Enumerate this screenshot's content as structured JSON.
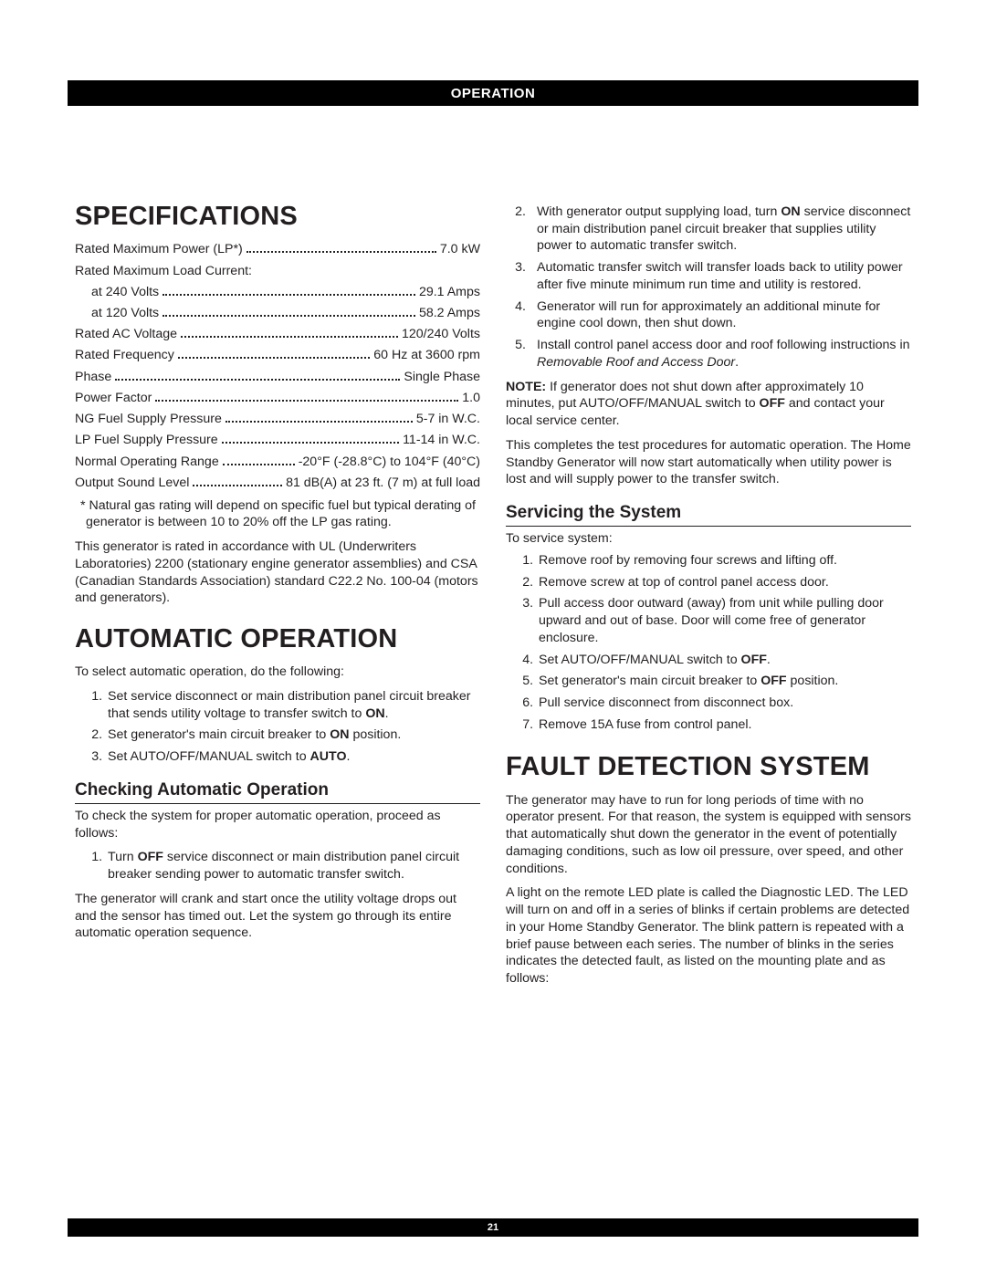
{
  "header": {
    "title": "OPERATION"
  },
  "footer": {
    "page_number": "21"
  },
  "left": {
    "specifications": {
      "heading": "SPECIFICATIONS",
      "lines": [
        {
          "label": "Rated Maximum Power (LP*)",
          "value": "7.0 kW"
        }
      ],
      "load_current_header": "Rated Maximum Load Current:",
      "load_current": [
        {
          "label": "at 240 Volts",
          "value": "29.1 Amps"
        },
        {
          "label": "at 120 Volts",
          "value": "58.2 Amps"
        }
      ],
      "more": [
        {
          "label": "Rated AC Voltage",
          "value": "120/240 Volts"
        },
        {
          "label": "Rated Frequency",
          "value": "60 Hz at 3600 rpm"
        },
        {
          "label": "Phase",
          "value": "Single Phase"
        },
        {
          "label": "Power Factor",
          "value": "1.0"
        },
        {
          "label": "NG Fuel Supply Pressure",
          "value": "5-7 in W.C."
        },
        {
          "label": "LP Fuel Supply Pressure",
          "value": "11-14 in W.C."
        },
        {
          "label": "Normal Operating Range",
          "value": "-20°F (-28.8°C) to 104°F (40°C)"
        },
        {
          "label": "Output Sound Level",
          "value": "81 dB(A) at 23 ft. (7 m) at full load"
        }
      ],
      "footnote": "* Natural gas rating will depend on specific fuel but typical derating of generator is between 10 to 20% off the LP gas rating.",
      "compliance": "This generator is rated in accordance with UL (Underwriters Laboratories) 2200 (stationary engine generator assemblies) and CSA (Canadian Standards Association) standard C22.2 No. 100-04 (motors and generators)."
    },
    "auto_op": {
      "heading": "AUTOMATIC OPERATION",
      "intro": "To select automatic operation, do the following:",
      "steps": {
        "s1a": "Set service disconnect or main distribution panel circuit breaker that sends utility voltage to transfer switch to ",
        "s1b": "ON",
        "s1c": ".",
        "s2a": "Set generator's main circuit breaker to ",
        "s2b": "ON",
        "s2c": " position.",
        "s3a": "Set AUTO/OFF/MANUAL switch to ",
        "s3b": "AUTO",
        "s3c": "."
      },
      "check_heading": "Checking Automatic Operation",
      "check_intro": "To check the system for proper automatic operation, proceed as follows:",
      "check_steps": {
        "c1a": "Turn ",
        "c1b": "OFF",
        "c1c": " service disconnect or main distribution panel circuit breaker sending power to automatic transfer switch."
      },
      "check_para": "The generator will crank and start once the utility voltage drops out and the sensor has timed out. Let the system go through its entire automatic operation sequence."
    }
  },
  "right": {
    "cont_steps": {
      "n2": "2.",
      "n3": "3.",
      "n4": "4.",
      "n5": "5.",
      "s2a": "With generator output supplying load, turn ",
      "s2b": "ON",
      "s2c": " service disconnect or main distribution panel circuit breaker that supplies utility power to automatic transfer switch.",
      "s3": "Automatic transfer switch will transfer loads back to utility power after five minute minimum run time and utility is restored.",
      "s4": "Generator will run for approximately an additional minute for engine cool down, then shut down.",
      "s5a": "Install control panel access door and roof following instructions in ",
      "s5b": "Removable Roof and Access Door",
      "s5c": "."
    },
    "note": {
      "label": "NOTE:",
      "a": " If generator does not shut down after approximately 10 minutes, put AUTO/OFF/MANUAL switch to ",
      "b": "OFF",
      "c": " and contact your local service center."
    },
    "closing": "This completes the test procedures for automatic operation. The Home Standby Generator will now start automatically when utility power is lost and will supply power to the transfer switch.",
    "servicing": {
      "heading": "Servicing the System",
      "intro": "To service system:",
      "steps": {
        "s1": "Remove roof by removing four screws and lifting off.",
        "s2": "Remove screw at top of control panel access door.",
        "s3": "Pull access door outward (away) from unit while pulling door upward and out of base. Door will come free of generator enclosure.",
        "s4a": "Set AUTO/OFF/MANUAL switch to ",
        "s4b": "OFF",
        "s4c": ".",
        "s5a": "Set generator's main circuit breaker to ",
        "s5b": "OFF",
        "s5c": " position.",
        "s6": "Pull service disconnect from disconnect box.",
        "s7": "Remove 15A fuse from control panel."
      }
    },
    "fault": {
      "heading": "FAULT DETECTION SYSTEM",
      "p1": "The generator may have to run for long periods of time with no operator present. For that reason, the system is equipped with sensors that automatically shut down the generator in the event of potentially damaging conditions, such as low oil pressure, over speed, and other conditions.",
      "p2": "A light on the remote LED plate is called the Diagnostic LED. The LED will turn on and off in a series of blinks if certain problems are detected in your Home Standby Generator. The blink pattern is repeated with a brief pause between each series. The number of blinks in the series indicates the detected fault, as listed on the mounting plate and as follows:"
    }
  }
}
